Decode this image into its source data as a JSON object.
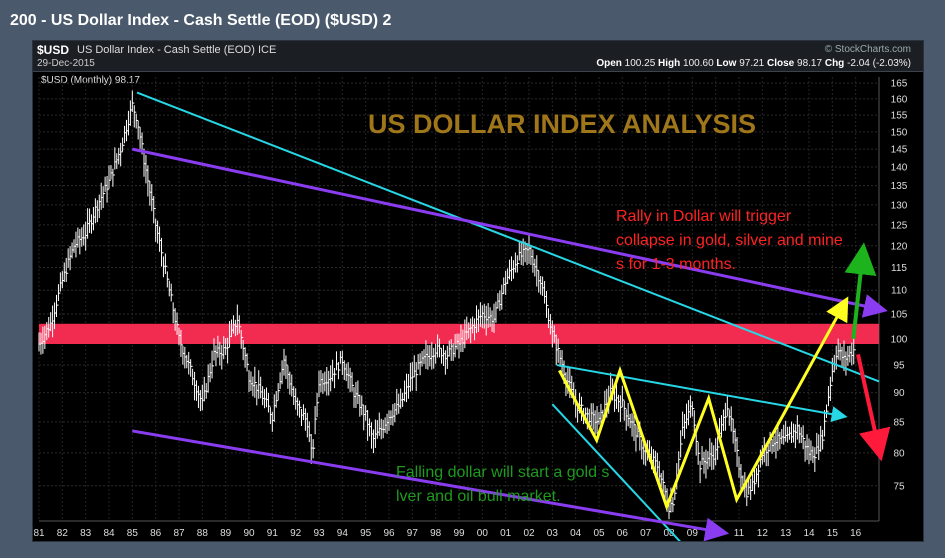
{
  "window": {
    "title": "200 - US Dollar Index - Cash Settle (EOD) ($USD) 2"
  },
  "header": {
    "symbol": "$USD",
    "name": "US Dollar Index - Cash Settle (EOD)",
    "exchange": "ICE",
    "date": "29-Dec-2015",
    "source": "© StockCharts.com",
    "open_label": "Open",
    "open": "100.25",
    "high_label": "High",
    "high": "100.60",
    "low_label": "Low",
    "low": "97.21",
    "close_label": "Close",
    "close": "98.17",
    "chg_label": "Chg",
    "chg": "-2.04 (-2.03%)"
  },
  "legend": {
    "text": "$USD (Monthly) 98.17"
  },
  "colors": {
    "background": "#000000",
    "bars": "#ffffff",
    "support_zone": "#ff2d55",
    "cyan_line": "#26d7e6",
    "purple_line": "#8a3cf0",
    "yellow_path": "#ffff22",
    "green_arrow": "#1db31d",
    "red_arrow": "#ff1a3c",
    "title_text": "#a0761a",
    "red_text": "#ff2222",
    "green_text": "#1e9a1e"
  },
  "chart_data": {
    "type": "bar",
    "title": "US DOLLAR INDEX ANALYSIS",
    "x_tick_labels": [
      "81",
      "82",
      "83",
      "84",
      "85",
      "86",
      "87",
      "88",
      "89",
      "90",
      "91",
      "92",
      "93",
      "94",
      "95",
      "96",
      "97",
      "98",
      "99",
      "00",
      "01",
      "02",
      "03",
      "04",
      "05",
      "06",
      "07",
      "08",
      "09",
      "10",
      "11",
      "12",
      "13",
      "14",
      "15",
      "16"
    ],
    "y_tick_labels": [
      "165",
      "160",
      "155",
      "150",
      "145",
      "140",
      "135",
      "130",
      "125",
      "120",
      "115",
      "110",
      "105",
      "100",
      "95",
      "90",
      "85",
      "80",
      "75"
    ],
    "y_scale": "log",
    "ylim": [
      70,
      167
    ],
    "grid": true,
    "series": [
      {
        "name": "$USD (Monthly)",
        "x": [
          1981.0,
          1981.5,
          1982.0,
          1982.5,
          1983.0,
          1983.5,
          1984.0,
          1984.5,
          1985.0,
          1985.2,
          1985.5,
          1986.0,
          1986.5,
          1987.0,
          1987.5,
          1988.0,
          1988.5,
          1989.0,
          1989.5,
          1990.0,
          1990.5,
          1991.0,
          1991.5,
          1992.0,
          1992.5,
          1992.7,
          1993.0,
          1993.5,
          1994.0,
          1994.5,
          1995.0,
          1995.3,
          1995.7,
          1996.0,
          1996.5,
          1997.0,
          1997.5,
          1998.0,
          1998.5,
          1999.0,
          1999.5,
          2000.0,
          2000.5,
          2001.0,
          2001.5,
          2002.0,
          2002.5,
          2003.0,
          2003.5,
          2004.0,
          2004.5,
          2005.0,
          2005.5,
          2006.0,
          2006.5,
          2007.0,
          2007.5,
          2008.0,
          2008.2,
          2008.6,
          2009.0,
          2009.3,
          2009.6,
          2010.0,
          2010.5,
          2011.0,
          2011.3,
          2011.6,
          2012.0,
          2012.5,
          2013.0,
          2013.5,
          2014.0,
          2014.3,
          2014.6,
          2015.0,
          2015.2,
          2015.5,
          2015.99
        ],
        "values": [
          99,
          103,
          112,
          120,
          123,
          130,
          136,
          145,
          158,
          154,
          142,
          125,
          112,
          100,
          94,
          88,
          97,
          98,
          104,
          93,
          90,
          86,
          96,
          88,
          85,
          79,
          92,
          93,
          96,
          90,
          86,
          82,
          84,
          86,
          88,
          93,
          96,
          98,
          97,
          99,
          102,
          105,
          104,
          112,
          117,
          119,
          112,
          101,
          94,
          88,
          86,
          85,
          90,
          88,
          84,
          80,
          78,
          72,
          73,
          84,
          88,
          78,
          79,
          80,
          88,
          78,
          74,
          75,
          80,
          82,
          82,
          84,
          80,
          80,
          83,
          94,
          98,
          96,
          98.17
        ]
      }
    ],
    "annotations": [
      "US DOLLAR INDEX ANALYSIS",
      "Rally in Dollar will trigger a collapse in gold, silver and miners for 1-3 months.",
      "Falling dollar will start a gold silver and oil bull market."
    ],
    "support_zone": {
      "y_low": 99,
      "y_high": 103
    },
    "trendlines": [
      {
        "name": "cyan-upper",
        "color_key": "cyan_line",
        "from": [
          1985.2,
          162
        ],
        "to": [
          2017.0,
          92
        ]
      },
      {
        "name": "cyan-channel-top",
        "color_key": "cyan_line",
        "from": [
          2003.2,
          95
        ],
        "to": [
          2015.4,
          86
        ]
      },
      {
        "name": "cyan-channel-bottom",
        "color_key": "cyan_line",
        "from": [
          2003.0,
          88
        ],
        "to": [
          2009.8,
          63
        ]
      },
      {
        "name": "purple-upper",
        "color_key": "purple_line",
        "from": [
          1985.0,
          145
        ],
        "to": [
          2017.0,
          106
        ]
      },
      {
        "name": "purple-lower",
        "color_key": "purple_line",
        "from": [
          1985.0,
          83.5
        ],
        "to": [
          2010.2,
          68.5
        ]
      }
    ],
    "yellow_path": [
      [
        2003.3,
        94
      ],
      [
        2004.9,
        82
      ],
      [
        2005.9,
        94
      ],
      [
        2007.9,
        72
      ],
      [
        2009.7,
        89
      ],
      [
        2010.9,
        73
      ],
      [
        2015.5,
        107
      ]
    ],
    "arrows": [
      {
        "name": "green-arrow",
        "color_key": "green_arrow",
        "from": [
          2015.9,
          100
        ],
        "to": [
          2016.3,
          118
        ]
      },
      {
        "name": "red-arrow",
        "color_key": "red_arrow",
        "from": [
          2016.1,
          97
        ],
        "to": [
          2017.0,
          80.5
        ]
      }
    ]
  }
}
